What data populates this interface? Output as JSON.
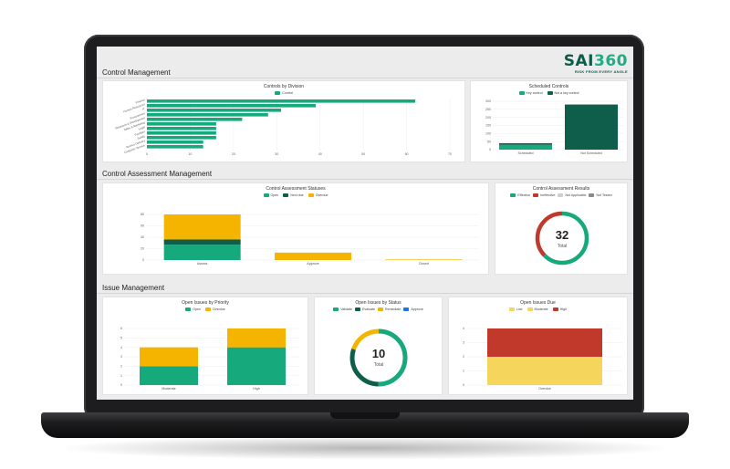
{
  "colors": {
    "green": "#16a97c",
    "dark_green": "#0f5e4c",
    "amber": "#f4b400",
    "red": "#c0392b",
    "yellow": "#f6d55c",
    "blue": "#1a73e8",
    "light_gray": "#d0d0d0",
    "gray": "#8a8a8a"
  },
  "logo": {
    "brand_a": "SAI",
    "brand_b": "360",
    "tagline": "RISK FROM EVERY ANGLE"
  },
  "sections": {
    "control_management": "Control Management",
    "control_assessment_management": "Control Assessment Management",
    "issue_management": "Issue Management"
  },
  "cards": {
    "controls_by_division": {
      "title": "Controls by Division",
      "legend": [
        "Control"
      ]
    },
    "scheduled_controls": {
      "title": "Scheduled Controls",
      "legend": [
        "Key control",
        "Not a key control"
      ]
    },
    "control_assessment_statuses": {
      "title": "Control Assessment Statuses",
      "legend": [
        "Open",
        "Next due",
        "Overdue"
      ]
    },
    "control_assessment_results": {
      "title": "Control Assessment Results",
      "legend": [
        "Effective",
        "Ineffective",
        "Not Applicable",
        "Not Tested"
      ],
      "total_value": "32",
      "total_label": "Total"
    },
    "open_issues_by_priority": {
      "title": "Open Issues by Priority",
      "legend": [
        "Open",
        "Overdue"
      ]
    },
    "open_issues_by_status": {
      "title": "Open Issues by Status",
      "legend": [
        "Validate",
        "Evaluate",
        "Remediate",
        "Approve"
      ],
      "total_value": "10",
      "total_label": "Total"
    },
    "open_issues_due": {
      "title": "Open Issues Due",
      "legend": [
        "Low",
        "Moderate",
        "High"
      ]
    }
  },
  "chart_data": [
    {
      "id": "controls_by_division",
      "type": "bar",
      "orientation": "horizontal",
      "categories": [
        "Finance",
        "Human Resources",
        "IT",
        "Procurement",
        "Research & Development",
        "Sales & Marketing",
        "Legal",
        "Facilities",
        "Safety",
        "Service Delivery",
        "Customer Service"
      ],
      "series": [
        {
          "name": "Control",
          "values": [
            62,
            39,
            31,
            28,
            22,
            16,
            16,
            16,
            16,
            13,
            13
          ]
        }
      ],
      "xlim": [
        0,
        70
      ],
      "xticks": [
        0,
        10,
        20,
        30,
        40,
        50,
        60,
        70
      ]
    },
    {
      "id": "scheduled_controls",
      "type": "bar",
      "categories": [
        "Scheduled",
        "Not Scheduled"
      ],
      "series": [
        {
          "name": "Key control",
          "values": [
            30,
            0
          ]
        },
        {
          "name": "Not a key control",
          "values": [
            10,
            280
          ]
        }
      ],
      "ylim": [
        0,
        300
      ],
      "yticks": [
        0,
        50,
        100,
        150,
        200,
        250,
        300
      ]
    },
    {
      "id": "control_assessment_statuses",
      "type": "bar",
      "stacked": true,
      "categories": [
        "Assess",
        "Approve",
        "Closed"
      ],
      "series": [
        {
          "name": "Open",
          "values": [
            27,
            0,
            0
          ]
        },
        {
          "name": "Next due",
          "values": [
            9,
            0,
            0
          ]
        },
        {
          "name": "Overdue",
          "values": [
            44,
            13,
            1
          ]
        }
      ],
      "ylim": [
        0,
        80
      ],
      "yticks": [
        0,
        20,
        40,
        60,
        80
      ]
    },
    {
      "id": "control_assessment_results",
      "type": "pie",
      "donut": true,
      "slices": [
        {
          "name": "Effective",
          "value": 20
        },
        {
          "name": "Ineffective",
          "value": 12
        },
        {
          "name": "Not Applicable",
          "value": 0
        },
        {
          "name": "Not Tested",
          "value": 0
        }
      ]
    },
    {
      "id": "open_issues_by_priority",
      "type": "bar",
      "stacked": true,
      "categories": [
        "Moderate",
        "High"
      ],
      "series": [
        {
          "name": "Open",
          "values": [
            2,
            4
          ]
        },
        {
          "name": "Overdue",
          "values": [
            2,
            2
          ]
        }
      ],
      "ylim": [
        0,
        6
      ],
      "yticks": [
        0,
        1,
        2,
        3,
        4,
        5,
        6
      ]
    },
    {
      "id": "open_issues_by_status",
      "type": "pie",
      "donut": true,
      "slices": [
        {
          "name": "Validate",
          "value": 5
        },
        {
          "name": "Evaluate",
          "value": 3
        },
        {
          "name": "Remediate",
          "value": 2
        },
        {
          "name": "Approve",
          "value": 0
        }
      ]
    },
    {
      "id": "open_issues_due",
      "type": "bar",
      "stacked": true,
      "categories": [
        "Overdue"
      ],
      "series": [
        {
          "name": "Low",
          "values": [
            0
          ]
        },
        {
          "name": "Moderate",
          "values": [
            2
          ]
        },
        {
          "name": "High",
          "values": [
            2
          ]
        }
      ],
      "ylim": [
        0,
        4
      ],
      "yticks": [
        0,
        1,
        2,
        3,
        4
      ]
    }
  ]
}
